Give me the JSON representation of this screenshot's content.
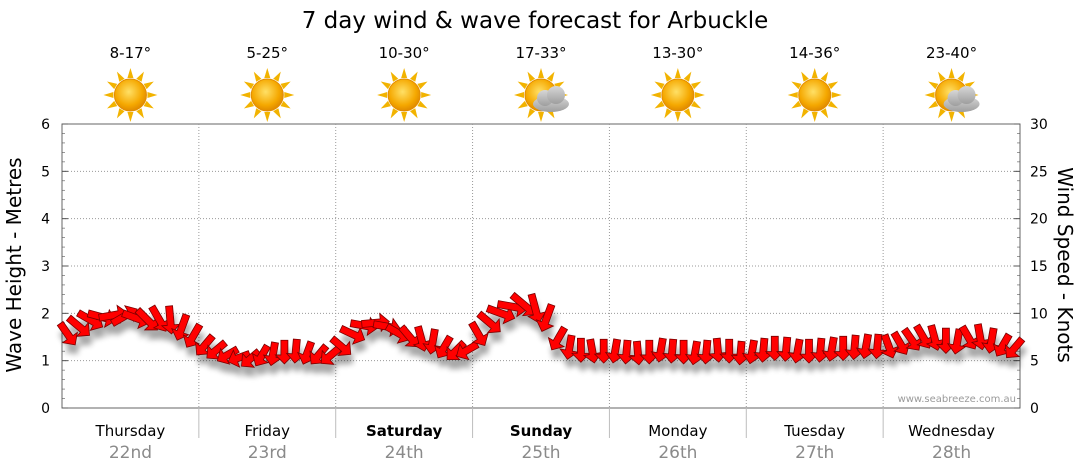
{
  "chart_data": {
    "type": "line",
    "title": "7 day wind & wave forecast for Arbuckle",
    "left_axis": {
      "label": "Wave Height - Metres",
      "min": 0,
      "max": 6,
      "ticks": [
        "0",
        "1",
        "2",
        "3",
        "4",
        "5",
        "6"
      ]
    },
    "right_axis": {
      "label": "Wind Speed - Knots",
      "min": 0,
      "max": 30,
      "ticks": [
        "0",
        "5",
        "10",
        "15",
        "20",
        "25",
        "30"
      ]
    },
    "grid": true,
    "days": [
      {
        "day": "Thursday",
        "date": "22nd",
        "temp": "8-17°",
        "weather": "sunny",
        "bold": false
      },
      {
        "day": "Friday",
        "date": "23rd",
        "temp": "5-25°",
        "weather": "sunny",
        "bold": false
      },
      {
        "day": "Saturday",
        "date": "24th",
        "temp": "10-30°",
        "weather": "sunny",
        "bold": true
      },
      {
        "day": "Sunday",
        "date": "25th",
        "temp": "17-33°",
        "weather": "partly-cloudy",
        "bold": true
      },
      {
        "day": "Monday",
        "date": "26th",
        "temp": "13-30°",
        "weather": "sunny",
        "bold": false
      },
      {
        "day": "Tuesday",
        "date": "27th",
        "temp": "14-36°",
        "weather": "sunny",
        "bold": false
      },
      {
        "day": "Wednesday",
        "date": "28th",
        "temp": "23-40°",
        "weather": "partly-cloudy",
        "bold": false
      }
    ],
    "series": [
      {
        "name": "Wind",
        "color": "#ff0000",
        "unit": "knots",
        "note": "values every 2 hours from Thursday 00:00",
        "speeds": [
          7.8,
          8.6,
          9.3,
          9.6,
          9.8,
          9.7,
          9.5,
          9.3,
          9.4,
          9.3,
          8.5,
          7.6,
          6.6,
          6.1,
          5.6,
          5.3,
          5.2,
          5.5,
          5.7,
          5.9,
          6.0,
          5.8,
          5.6,
          5.5,
          6.5,
          7.8,
          8.7,
          9.0,
          8.6,
          7.9,
          7.5,
          7.3,
          7.0,
          6.4,
          6.0,
          6.1,
          7.8,
          9.0,
          10.0,
          10.7,
          10.9,
          10.5,
          9.5,
          7.3,
          6.4,
          6.1,
          6.0,
          6.0,
          6.0,
          5.9,
          5.8,
          5.9,
          6.1,
          6.0,
          5.9,
          5.8,
          5.9,
          6.1,
          6.0,
          5.8,
          5.9,
          6.1,
          6.3,
          6.2,
          6.0,
          6.0,
          6.1,
          6.2,
          6.3,
          6.4,
          6.5,
          6.5,
          6.5,
          6.8,
          7.2,
          7.5,
          7.4,
          7.1,
          7.0,
          7.4,
          7.5,
          7.1,
          6.6,
          6.3
        ],
        "directions_deg": [
          55,
          40,
          30,
          15,
          350,
          330,
          20,
          45,
          60,
          85,
          110,
          120,
          130,
          140,
          150,
          160,
          140,
          120,
          100,
          90,
          95,
          110,
          130,
          140,
          40,
          25,
          10,
          355,
          10,
          30,
          50,
          75,
          100,
          120,
          135,
          150,
          60,
          40,
          20,
          10,
          40,
          75,
          110,
          120,
          100,
          90,
          80,
          90,
          100,
          95,
          85,
          90,
          100,
          95,
          90,
          100,
          95,
          85,
          90,
          95,
          100,
          95,
          90,
          95,
          100,
          90,
          95,
          100,
          90,
          95,
          100,
          95,
          70,
          60,
          55,
          60,
          75,
          90,
          100,
          60,
          80,
          100,
          120,
          130
        ]
      }
    ]
  }
}
